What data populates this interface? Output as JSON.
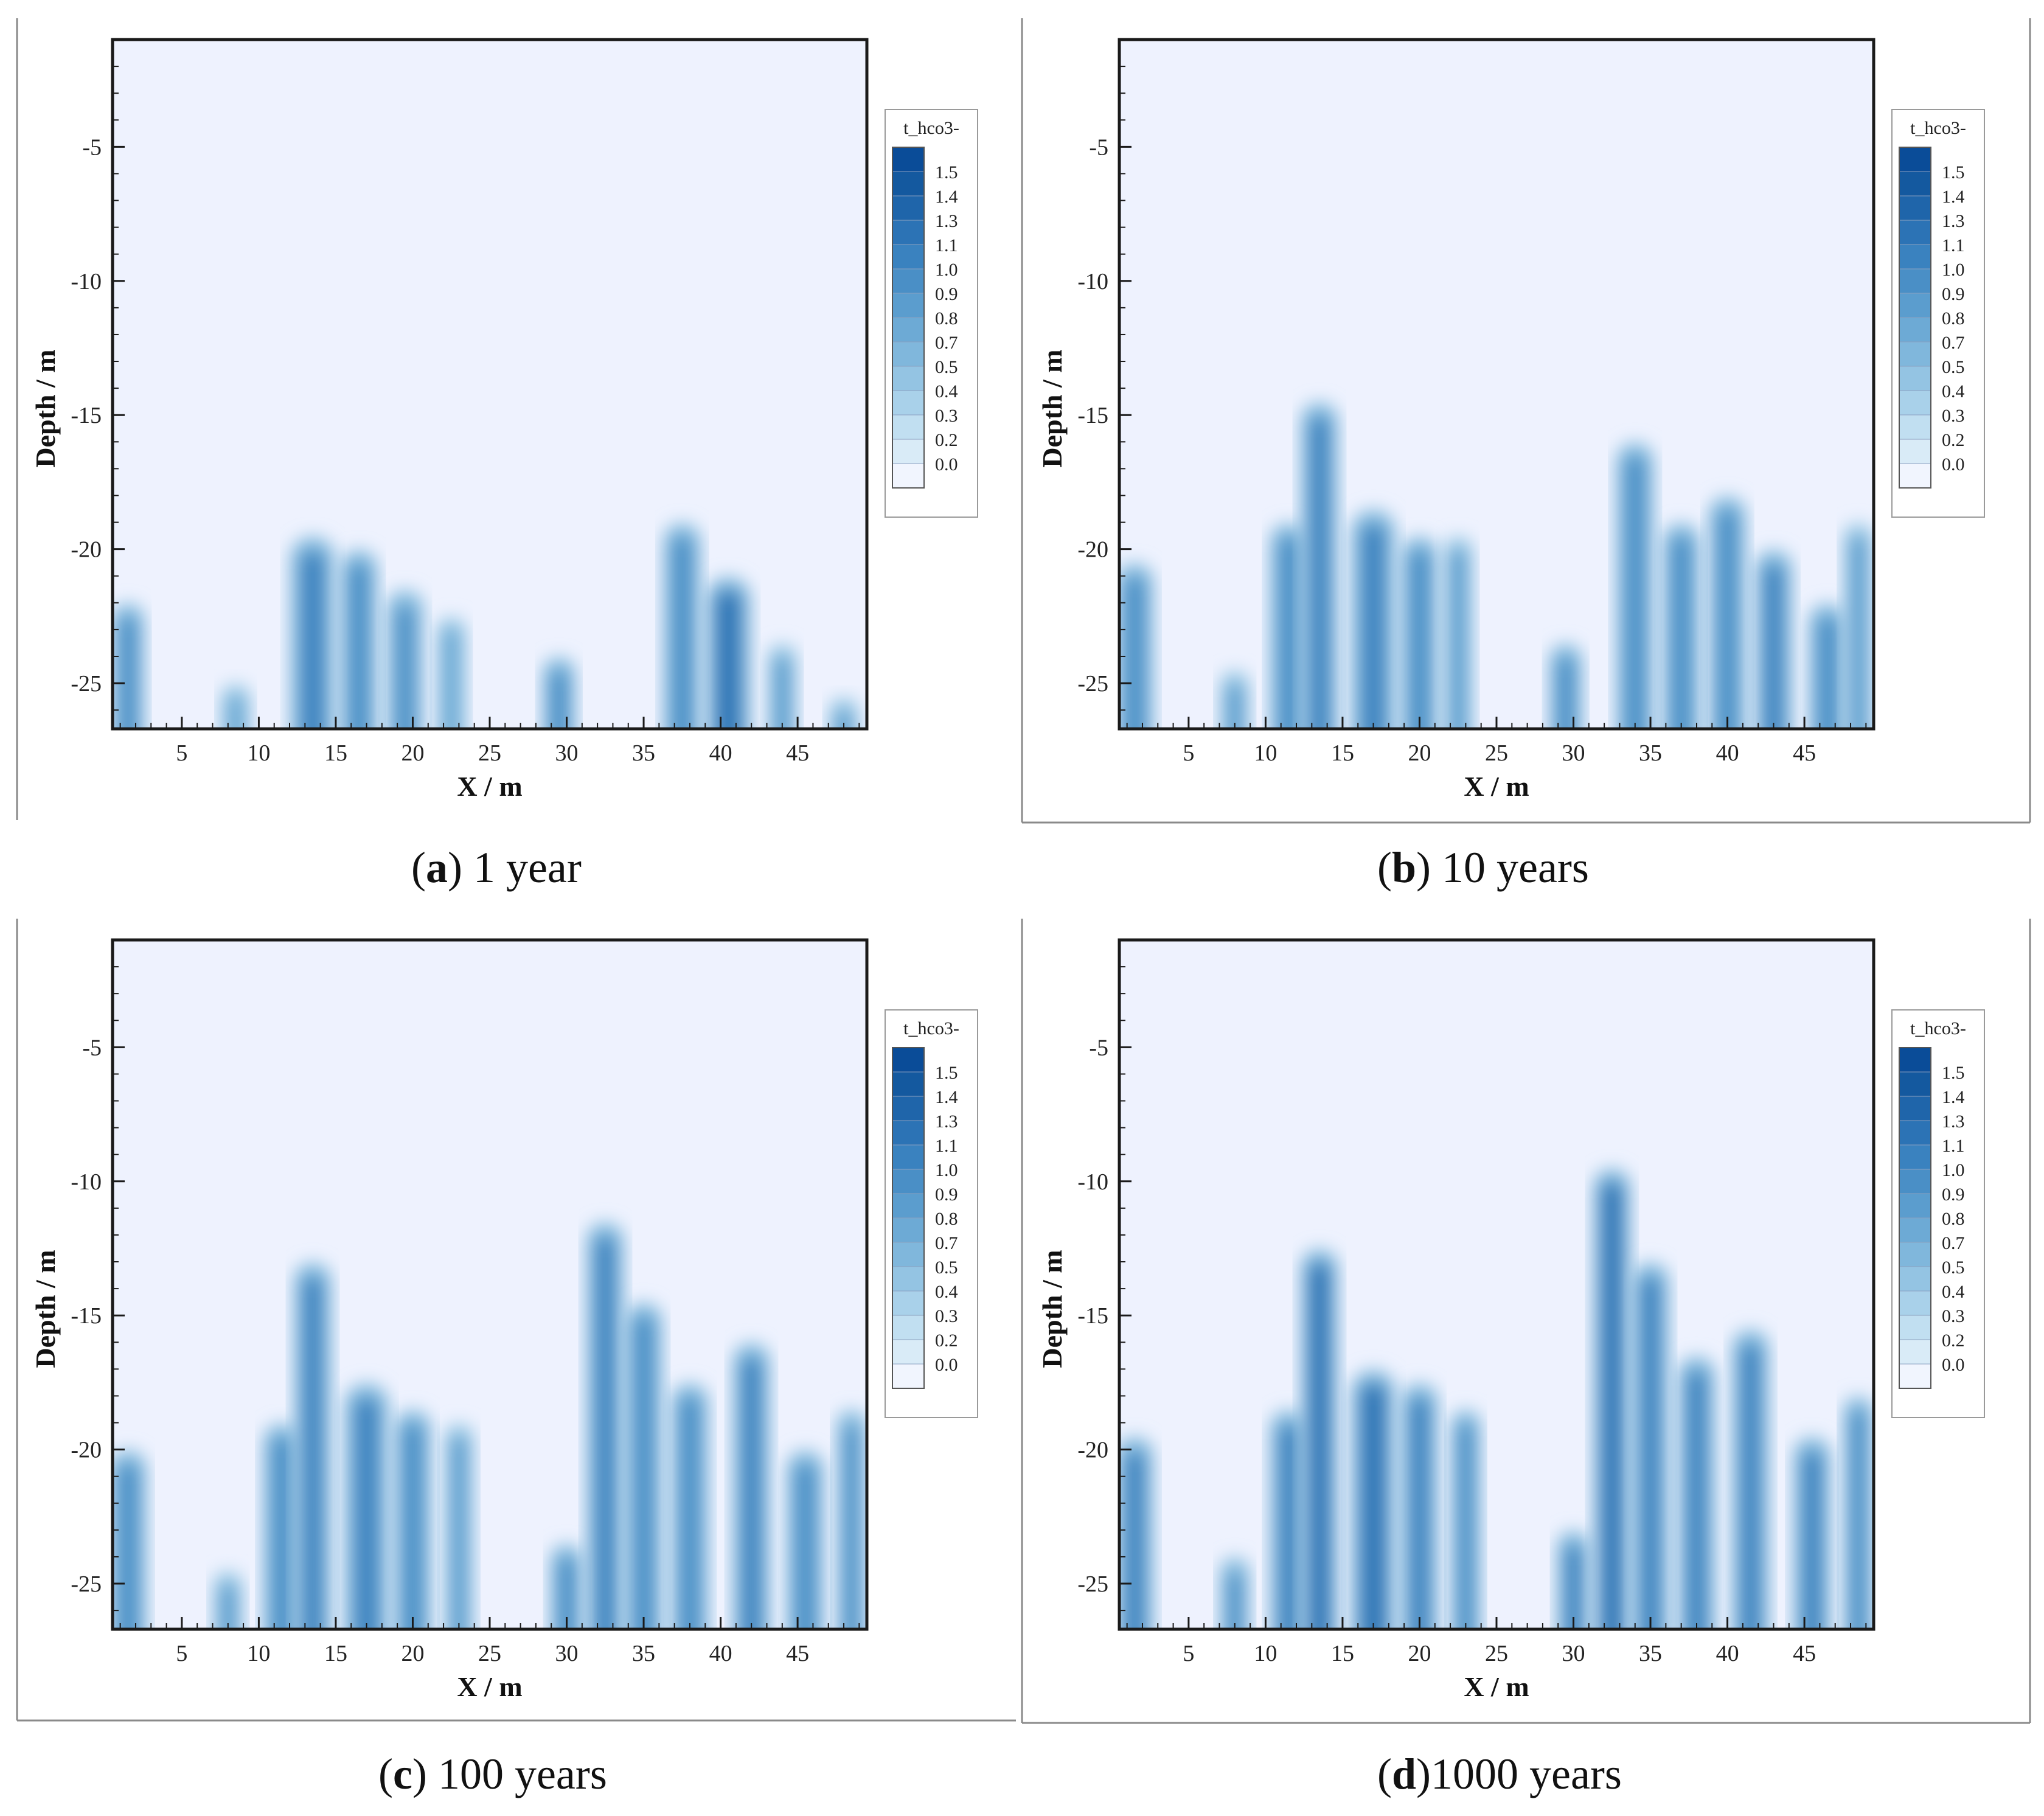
{
  "chart_data": [
    {
      "type": "heatmap",
      "id": "a",
      "caption_letter": "a",
      "caption_text": " 1 year",
      "xlabel": "X / m",
      "ylabel": "Depth / m",
      "xlim": [
        0.5,
        49.5
      ],
      "ylim": [
        -26.7,
        -1.0
      ],
      "xticks": [
        5,
        10,
        15,
        20,
        25,
        30,
        35,
        40,
        45
      ],
      "yticks": [
        -5,
        -10,
        -15,
        -20,
        -25
      ],
      "legend": {
        "title": "t_hco3-",
        "position": "right"
      },
      "plumes": [
        {
          "x": 1.5,
          "top": -22.0,
          "w": 2.2,
          "v": 0.95
        },
        {
          "x": 8.5,
          "top": -25.0,
          "w": 2.0,
          "v": 0.7
        },
        {
          "x": 13.5,
          "top": -19.5,
          "w": 3.0,
          "v": 1.0
        },
        {
          "x": 16.5,
          "top": -20.0,
          "w": 2.5,
          "v": 0.95
        },
        {
          "x": 19.5,
          "top": -21.5,
          "w": 2.5,
          "v": 0.9
        },
        {
          "x": 22.5,
          "top": -22.5,
          "w": 2.0,
          "v": 0.75
        },
        {
          "x": 29.5,
          "top": -24.0,
          "w": 2.2,
          "v": 0.95
        },
        {
          "x": 37.5,
          "top": -19.0,
          "w": 2.5,
          "v": 0.95
        },
        {
          "x": 40.5,
          "top": -21.0,
          "w": 3.0,
          "v": 1.1
        },
        {
          "x": 44.0,
          "top": -23.5,
          "w": 2.0,
          "v": 0.8
        },
        {
          "x": 48.0,
          "top": -25.5,
          "w": 2.0,
          "v": 0.8
        }
      ]
    },
    {
      "type": "heatmap",
      "id": "b",
      "caption_letter": "b",
      "caption_text": " 10 years",
      "xlabel": "X / m",
      "ylabel": "Depth / m",
      "xlim": [
        0.5,
        49.5
      ],
      "ylim": [
        -26.7,
        -1.0
      ],
      "xticks": [
        5,
        10,
        15,
        20,
        25,
        30,
        35,
        40,
        45
      ],
      "yticks": [
        -5,
        -10,
        -15,
        -20,
        -25
      ],
      "legend": {
        "title": "t_hco3-",
        "position": "right"
      },
      "plumes": [
        {
          "x": 1.5,
          "top": -20.5,
          "w": 2.5,
          "v": 0.95
        },
        {
          "x": 8.0,
          "top": -24.5,
          "w": 2.0,
          "v": 0.8
        },
        {
          "x": 11.5,
          "top": -19.0,
          "w": 2.5,
          "v": 0.95
        },
        {
          "x": 13.5,
          "top": -14.5,
          "w": 2.5,
          "v": 1.0
        },
        {
          "x": 17.0,
          "top": -18.5,
          "w": 3.0,
          "v": 1.0
        },
        {
          "x": 20.0,
          "top": -19.5,
          "w": 2.5,
          "v": 0.95
        },
        {
          "x": 22.5,
          "top": -19.5,
          "w": 2.0,
          "v": 0.85
        },
        {
          "x": 29.5,
          "top": -23.5,
          "w": 2.2,
          "v": 0.95
        },
        {
          "x": 34.0,
          "top": -16.0,
          "w": 2.5,
          "v": 0.95
        },
        {
          "x": 37.0,
          "top": -19.0,
          "w": 2.5,
          "v": 0.95
        },
        {
          "x": 40.0,
          "top": -18.0,
          "w": 2.5,
          "v": 0.95
        },
        {
          "x": 43.0,
          "top": -20.0,
          "w": 2.5,
          "v": 1.0
        },
        {
          "x": 46.5,
          "top": -22.0,
          "w": 2.5,
          "v": 0.95
        },
        {
          "x": 48.5,
          "top": -19.0,
          "w": 2.0,
          "v": 0.85
        }
      ]
    },
    {
      "type": "heatmap",
      "id": "c",
      "caption_letter": "c",
      "caption_text": " 100 years",
      "xlabel": "X / m",
      "ylabel": "Depth / m",
      "xlim": [
        0.5,
        49.5
      ],
      "ylim": [
        -26.7,
        -1.0
      ],
      "xticks": [
        5,
        10,
        15,
        20,
        25,
        30,
        35,
        40,
        45
      ],
      "yticks": [
        -5,
        -10,
        -15,
        -20,
        -25
      ],
      "legend": {
        "title": "t_hco3-",
        "position": "right"
      },
      "plumes": [
        {
          "x": 1.5,
          "top": -20.0,
          "w": 2.5,
          "v": 0.95
        },
        {
          "x": 8.0,
          "top": -24.5,
          "w": 2.0,
          "v": 0.8
        },
        {
          "x": 11.5,
          "top": -19.0,
          "w": 2.5,
          "v": 0.95
        },
        {
          "x": 13.5,
          "top": -13.0,
          "w": 2.5,
          "v": 1.0
        },
        {
          "x": 17.0,
          "top": -17.5,
          "w": 3.0,
          "v": 1.0
        },
        {
          "x": 20.0,
          "top": -18.5,
          "w": 2.5,
          "v": 0.95
        },
        {
          "x": 23.0,
          "top": -19.0,
          "w": 2.0,
          "v": 0.85
        },
        {
          "x": 30.0,
          "top": -23.5,
          "w": 2.2,
          "v": 0.95
        },
        {
          "x": 32.5,
          "top": -11.5,
          "w": 2.5,
          "v": 1.0
        },
        {
          "x": 35.0,
          "top": -14.5,
          "w": 2.5,
          "v": 0.95
        },
        {
          "x": 38.0,
          "top": -17.5,
          "w": 2.5,
          "v": 0.95
        },
        {
          "x": 42.0,
          "top": -16.0,
          "w": 2.5,
          "v": 1.0
        },
        {
          "x": 45.5,
          "top": -20.0,
          "w": 2.5,
          "v": 0.95
        },
        {
          "x": 48.5,
          "top": -18.5,
          "w": 2.0,
          "v": 0.9
        }
      ]
    },
    {
      "type": "heatmap",
      "id": "d",
      "caption_letter": "d",
      "caption_text": "1000 years",
      "xlabel": "X / m",
      "ylabel": "Depth / m",
      "xlim": [
        0.5,
        49.5
      ],
      "ylim": [
        -26.7,
        -1.0
      ],
      "xticks": [
        5,
        10,
        15,
        20,
        25,
        30,
        35,
        40,
        45
      ],
      "yticks": [
        -5,
        -10,
        -15,
        -20,
        -25
      ],
      "legend": {
        "title": "t_hco3-",
        "position": "right"
      },
      "plumes": [
        {
          "x": 1.5,
          "top": -19.5,
          "w": 2.5,
          "v": 1.05
        },
        {
          "x": 8.0,
          "top": -24.0,
          "w": 2.0,
          "v": 0.9
        },
        {
          "x": 11.5,
          "top": -18.5,
          "w": 2.5,
          "v": 1.05
        },
        {
          "x": 13.5,
          "top": -12.5,
          "w": 2.5,
          "v": 1.1
        },
        {
          "x": 17.0,
          "top": -17.0,
          "w": 3.0,
          "v": 1.1
        },
        {
          "x": 20.0,
          "top": -17.5,
          "w": 2.5,
          "v": 1.05
        },
        {
          "x": 23.0,
          "top": -18.5,
          "w": 2.0,
          "v": 0.95
        },
        {
          "x": 30.0,
          "top": -23.0,
          "w": 2.2,
          "v": 1.05
        },
        {
          "x": 32.5,
          "top": -9.5,
          "w": 2.5,
          "v": 1.1
        },
        {
          "x": 35.0,
          "top": -13.0,
          "w": 2.5,
          "v": 1.05
        },
        {
          "x": 38.0,
          "top": -16.5,
          "w": 2.5,
          "v": 1.05
        },
        {
          "x": 41.5,
          "top": -15.5,
          "w": 2.5,
          "v": 1.05
        },
        {
          "x": 45.5,
          "top": -19.5,
          "w": 2.5,
          "v": 1.05
        },
        {
          "x": 48.5,
          "top": -18.0,
          "w": 2.0,
          "v": 0.95
        }
      ]
    }
  ],
  "colorbar": {
    "levels": [
      "1.5",
      "1.4",
      "1.3",
      "1.1",
      "1.0",
      "0.9",
      "0.8",
      "0.7",
      "0.5",
      "0.4",
      "0.3",
      "0.2",
      "0.0"
    ],
    "colors": [
      "#0a4c98",
      "#14599f",
      "#1f65aa",
      "#2c73b5",
      "#3a82bf",
      "#4a8fc6",
      "#5b9dce",
      "#6daad5",
      "#80b7dc",
      "#94c4e3",
      "#a9d1ea",
      "#c1dff1",
      "#d9ebf7",
      "#f1f5fe"
    ]
  },
  "style": {
    "background_color": "#eef2fe",
    "axis_color": "#1a1a1a",
    "frame_color": "#8a8a8a"
  }
}
